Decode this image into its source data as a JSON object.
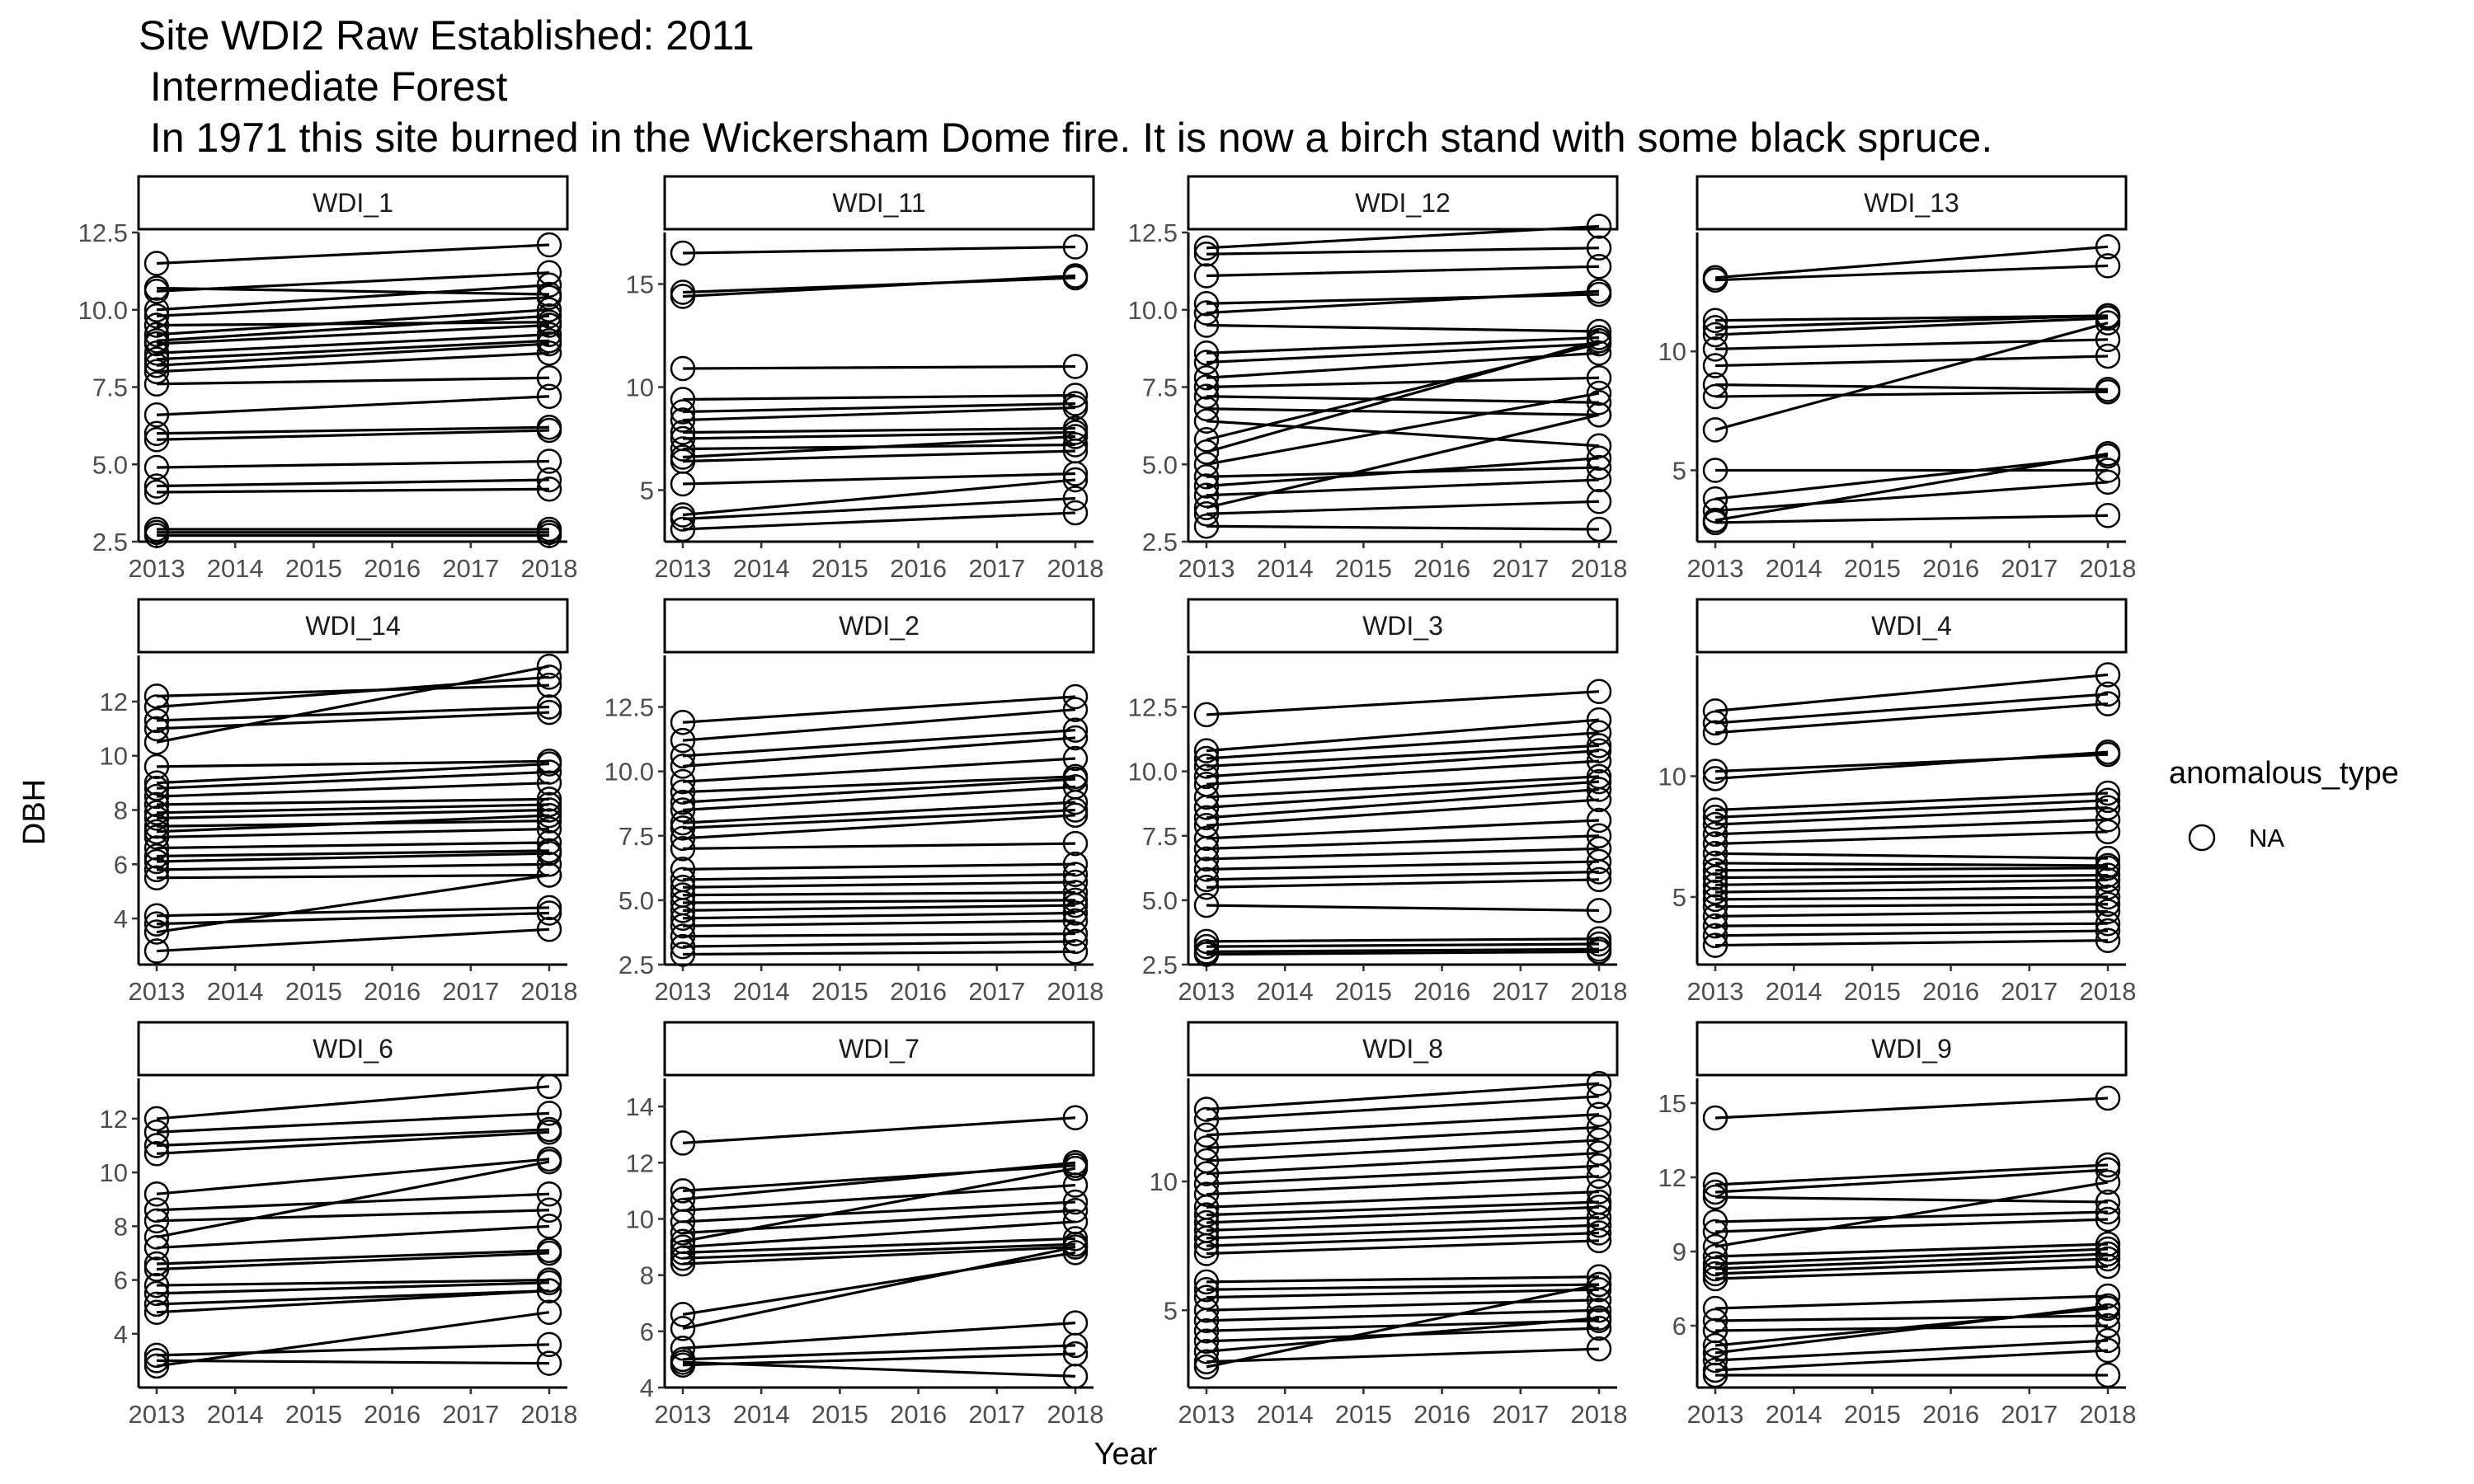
{
  "title_lines": [
    "Site WDI2 Raw Established: 2011",
    " Intermediate Forest",
    " In 1971 this site burned in the Wickersham Dome fire. It is now a birch stand with some black spruce."
  ],
  "legend": {
    "title": "anomalous_type",
    "entries": [
      "NA"
    ]
  },
  "chart_data": {
    "type": "line",
    "xlabel": "Year",
    "ylabel": "DBH",
    "x_ticks": [
      "2013",
      "2014",
      "2015",
      "2016",
      "2017",
      "2018"
    ],
    "xlim": [
      2013,
      2018
    ],
    "marker": "open-circle",
    "line_color": "#000000",
    "grid": false,
    "legend_position": "right",
    "panels": [
      {
        "name": "WDI_1",
        "ylim": [
          2.5,
          12.5
        ],
        "y_ticks": [
          "2.5",
          "5.0",
          "7.5",
          "10.0",
          "12.5"
        ],
        "trees": [
          [
            11.5,
            12.1
          ],
          [
            10.7,
            10.5
          ],
          [
            10.6,
            11.2
          ],
          [
            10.0,
            10.8
          ],
          [
            9.8,
            10.4
          ],
          [
            9.5,
            9.6
          ],
          [
            9.2,
            10.0
          ],
          [
            9.0,
            9.8
          ],
          [
            8.9,
            9.5
          ],
          [
            8.6,
            9.2
          ],
          [
            8.4,
            9.0
          ],
          [
            8.2,
            8.9
          ],
          [
            8.0,
            8.6
          ],
          [
            7.6,
            7.8
          ],
          [
            6.6,
            7.2
          ],
          [
            6.0,
            6.2
          ],
          [
            5.8,
            6.1
          ],
          [
            4.9,
            5.1
          ],
          [
            4.3,
            4.5
          ],
          [
            4.1,
            4.2
          ],
          [
            2.9,
            2.9
          ],
          [
            2.8,
            2.8
          ],
          [
            2.7,
            2.7
          ]
        ]
      },
      {
        "name": "WDI_11",
        "ylim": [
          2.5,
          17.5
        ],
        "y_ticks": [
          "5",
          "10",
          "15"
        ],
        "trees": [
          [
            16.5,
            16.8
          ],
          [
            14.6,
            15.3
          ],
          [
            14.4,
            15.4
          ],
          [
            10.9,
            11.0
          ],
          [
            9.4,
            9.6
          ],
          [
            8.8,
            9.2
          ],
          [
            8.4,
            9.0
          ],
          [
            7.8,
            8.0
          ],
          [
            7.5,
            7.8
          ],
          [
            7.0,
            7.2
          ],
          [
            6.6,
            7.6
          ],
          [
            6.4,
            6.9
          ],
          [
            5.3,
            5.8
          ],
          [
            3.8,
            5.5
          ],
          [
            3.6,
            4.6
          ],
          [
            3.1,
            3.9
          ]
        ]
      },
      {
        "name": "WDI_12",
        "ylim": [
          2.5,
          12.5
        ],
        "y_ticks": [
          "2.5",
          "5.0",
          "7.5",
          "10.0",
          "12.5"
        ],
        "trees": [
          [
            12.0,
            12.7
          ],
          [
            11.8,
            12.0
          ],
          [
            11.1,
            11.4
          ],
          [
            10.2,
            10.5
          ],
          [
            9.9,
            10.6
          ],
          [
            9.5,
            9.3
          ],
          [
            8.6,
            9.1
          ],
          [
            8.3,
            8.9
          ],
          [
            7.8,
            8.6
          ],
          [
            7.5,
            7.8
          ],
          [
            7.2,
            7.0
          ],
          [
            6.8,
            6.6
          ],
          [
            6.4,
            5.6
          ],
          [
            5.8,
            8.9
          ],
          [
            5.4,
            9.0
          ],
          [
            5.0,
            7.3
          ],
          [
            4.6,
            4.9
          ],
          [
            4.3,
            5.2
          ],
          [
            4.0,
            4.5
          ],
          [
            3.6,
            6.6
          ],
          [
            3.4,
            3.8
          ],
          [
            3.0,
            2.9
          ]
        ]
      },
      {
        "name": "WDI_13",
        "ylim": [
          2.0,
          15.0
        ],
        "y_ticks": [
          "5",
          "10"
        ],
        "trees": [
          [
            13.1,
            14.4
          ],
          [
            13.0,
            13.6
          ],
          [
            11.3,
            11.5
          ],
          [
            11.0,
            11.5
          ],
          [
            10.7,
            11.4
          ],
          [
            10.1,
            10.5
          ],
          [
            9.4,
            9.8
          ],
          [
            8.6,
            8.4
          ],
          [
            8.1,
            8.3
          ],
          [
            6.7,
            11.2
          ],
          [
            5.0,
            5.0
          ],
          [
            3.8,
            5.6
          ],
          [
            3.3,
            4.5
          ],
          [
            2.9,
            5.7
          ],
          [
            2.8,
            3.1
          ]
        ]
      },
      {
        "name": "WDI_14",
        "ylim": [
          2.3,
          13.7
        ],
        "y_ticks": [
          "4",
          "6",
          "8",
          "10",
          "12"
        ],
        "trees": [
          [
            12.2,
            12.6
          ],
          [
            11.8,
            12.9
          ],
          [
            11.3,
            11.8
          ],
          [
            11.0,
            11.6
          ],
          [
            10.5,
            13.3
          ],
          [
            9.6,
            9.8
          ],
          [
            9.0,
            9.7
          ],
          [
            8.8,
            9.4
          ],
          [
            8.5,
            9.0
          ],
          [
            8.2,
            8.4
          ],
          [
            7.9,
            8.2
          ],
          [
            7.7,
            8.0
          ],
          [
            7.4,
            7.6
          ],
          [
            7.2,
            7.8
          ],
          [
            7.0,
            7.3
          ],
          [
            6.6,
            6.8
          ],
          [
            6.3,
            6.5
          ],
          [
            6.1,
            6.4
          ],
          [
            5.8,
            6.0
          ],
          [
            5.5,
            5.6
          ],
          [
            4.1,
            4.4
          ],
          [
            3.8,
            4.2
          ],
          [
            3.5,
            5.6
          ],
          [
            2.8,
            3.6
          ]
        ]
      },
      {
        "name": "WDI_2",
        "ylim": [
          2.5,
          14.5
        ],
        "y_ticks": [
          "2.5",
          "5.0",
          "7.5",
          "10.0",
          "12.5"
        ],
        "trees": [
          [
            11.9,
            12.9
          ],
          [
            11.2,
            12.4
          ],
          [
            10.6,
            11.6
          ],
          [
            10.2,
            11.3
          ],
          [
            9.6,
            10.5
          ],
          [
            9.2,
            9.8
          ],
          [
            8.8,
            9.7
          ],
          [
            8.5,
            9.4
          ],
          [
            8.0,
            8.8
          ],
          [
            7.8,
            8.5
          ],
          [
            7.4,
            8.3
          ],
          [
            7.0,
            7.2
          ],
          [
            6.2,
            6.4
          ],
          [
            5.8,
            6.0
          ],
          [
            5.5,
            5.7
          ],
          [
            5.2,
            5.3
          ],
          [
            4.9,
            5.0
          ],
          [
            4.6,
            4.8
          ],
          [
            4.3,
            4.5
          ],
          [
            4.0,
            4.2
          ],
          [
            3.6,
            3.7
          ],
          [
            3.2,
            3.4
          ],
          [
            2.9,
            3.0
          ]
        ]
      },
      {
        "name": "WDI_3",
        "ylim": [
          2.5,
          14.5
        ],
        "y_ticks": [
          "2.5",
          "5.0",
          "7.5",
          "10.0",
          "12.5"
        ],
        "trees": [
          [
            12.2,
            13.1
          ],
          [
            10.8,
            12.0
          ],
          [
            10.5,
            11.5
          ],
          [
            10.2,
            11.0
          ],
          [
            9.8,
            10.8
          ],
          [
            9.5,
            10.4
          ],
          [
            9.0,
            9.8
          ],
          [
            8.6,
            9.6
          ],
          [
            8.2,
            9.3
          ],
          [
            7.9,
            8.9
          ],
          [
            7.4,
            8.1
          ],
          [
            7.0,
            7.5
          ],
          [
            6.6,
            7.0
          ],
          [
            6.2,
            6.5
          ],
          [
            5.8,
            6.1
          ],
          [
            5.5,
            5.8
          ],
          [
            4.8,
            4.6
          ],
          [
            3.4,
            3.5
          ],
          [
            3.2,
            3.3
          ],
          [
            3.0,
            3.1
          ],
          [
            2.9,
            3.0
          ]
        ]
      },
      {
        "name": "WDI_4",
        "ylim": [
          2.2,
          15.0
        ],
        "y_ticks": [
          "5",
          "10"
        ],
        "trees": [
          [
            12.7,
            14.2
          ],
          [
            12.2,
            13.4
          ],
          [
            11.8,
            13.0
          ],
          [
            10.2,
            10.9
          ],
          [
            9.9,
            11.0
          ],
          [
            8.6,
            9.3
          ],
          [
            8.3,
            9.0
          ],
          [
            8.0,
            8.7
          ],
          [
            7.6,
            8.2
          ],
          [
            7.2,
            7.7
          ],
          [
            6.8,
            6.6
          ],
          [
            6.4,
            6.3
          ],
          [
            6.1,
            6.2
          ],
          [
            5.8,
            5.9
          ],
          [
            5.5,
            5.7
          ],
          [
            5.2,
            5.4
          ],
          [
            4.9,
            5.0
          ],
          [
            4.6,
            4.7
          ],
          [
            4.2,
            4.4
          ],
          [
            3.8,
            3.9
          ],
          [
            3.4,
            3.6
          ],
          [
            3.0,
            3.2
          ]
        ]
      },
      {
        "name": "WDI_6",
        "ylim": [
          2.0,
          13.5
        ],
        "y_ticks": [
          "4",
          "6",
          "8",
          "10",
          "12"
        ],
        "trees": [
          [
            12.0,
            13.2
          ],
          [
            11.5,
            12.2
          ],
          [
            11.0,
            11.6
          ],
          [
            10.7,
            11.5
          ],
          [
            9.2,
            10.5
          ],
          [
            8.6,
            9.2
          ],
          [
            8.2,
            8.6
          ],
          [
            7.6,
            10.4
          ],
          [
            7.2,
            8.0
          ],
          [
            6.6,
            7.1
          ],
          [
            6.4,
            7.0
          ],
          [
            5.8,
            6.0
          ],
          [
            5.5,
            5.9
          ],
          [
            5.1,
            5.6
          ],
          [
            4.8,
            5.6
          ],
          [
            3.2,
            3.6
          ],
          [
            3.0,
            2.9
          ],
          [
            2.8,
            4.8
          ]
        ]
      },
      {
        "name": "WDI_7",
        "ylim": [
          4.0,
          15.0
        ],
        "y_ticks": [
          "4",
          "6",
          "8",
          "10",
          "12",
          "14"
        ],
        "trees": [
          [
            12.7,
            13.6
          ],
          [
            11.0,
            11.9
          ],
          [
            10.7,
            12.0
          ],
          [
            10.3,
            11.2
          ],
          [
            9.9,
            10.6
          ],
          [
            9.5,
            10.3
          ],
          [
            9.2,
            11.8
          ],
          [
            9.0,
            9.9
          ],
          [
            8.8,
            9.3
          ],
          [
            8.6,
            9.1
          ],
          [
            8.4,
            9.0
          ],
          [
            6.6,
            8.8
          ],
          [
            6.1,
            9.0
          ],
          [
            5.4,
            6.3
          ],
          [
            5.0,
            5.5
          ],
          [
            4.8,
            5.2
          ],
          [
            4.9,
            4.4
          ]
        ]
      },
      {
        "name": "WDI_8",
        "ylim": [
          2.0,
          14.0
        ],
        "y_ticks": [
          "5",
          "10"
        ],
        "trees": [
          [
            12.8,
            13.8
          ],
          [
            12.4,
            13.3
          ],
          [
            11.8,
            12.6
          ],
          [
            11.3,
            12.1
          ],
          [
            10.8,
            11.6
          ],
          [
            10.3,
            11.1
          ],
          [
            9.9,
            10.6
          ],
          [
            9.5,
            10.2
          ],
          [
            9.0,
            9.6
          ],
          [
            8.7,
            9.2
          ],
          [
            8.4,
            9.0
          ],
          [
            8.1,
            8.6
          ],
          [
            7.8,
            8.3
          ],
          [
            7.5,
            8.0
          ],
          [
            7.2,
            7.7
          ],
          [
            6.1,
            6.3
          ],
          [
            5.8,
            6.0
          ],
          [
            5.5,
            5.8
          ],
          [
            5.0,
            5.4
          ],
          [
            4.6,
            5.0
          ],
          [
            4.2,
            4.6
          ],
          [
            3.8,
            4.3
          ],
          [
            3.4,
            4.7
          ],
          [
            3.0,
            3.5
          ],
          [
            2.8,
            6.0
          ]
        ]
      },
      {
        "name": "WDI_9",
        "ylim": [
          3.5,
          16.0
        ],
        "y_ticks": [
          "6",
          "9",
          "12",
          "15"
        ],
        "trees": [
          [
            14.4,
            15.2
          ],
          [
            11.7,
            12.5
          ],
          [
            11.4,
            12.3
          ],
          [
            11.2,
            11.0
          ],
          [
            10.2,
            10.6
          ],
          [
            9.8,
            10.3
          ],
          [
            9.2,
            11.8
          ],
          [
            8.8,
            9.3
          ],
          [
            8.5,
            9.1
          ],
          [
            8.3,
            8.9
          ],
          [
            8.1,
            8.7
          ],
          [
            7.9,
            8.4
          ],
          [
            6.7,
            7.2
          ],
          [
            6.2,
            6.4
          ],
          [
            5.8,
            6.0
          ],
          [
            5.2,
            6.7
          ],
          [
            4.9,
            6.8
          ],
          [
            4.6,
            5.4
          ],
          [
            4.2,
            5.0
          ],
          [
            4.0,
            4.0
          ]
        ]
      }
    ]
  }
}
